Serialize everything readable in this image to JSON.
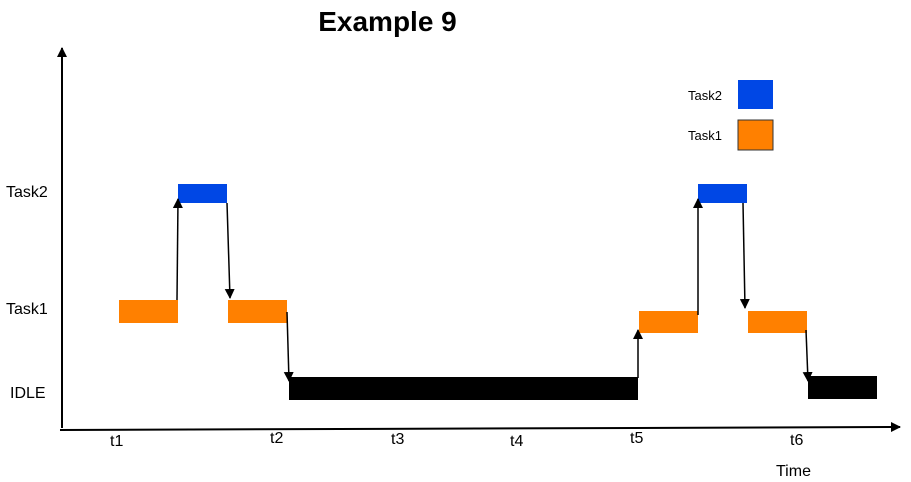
{
  "title": "Example 9",
  "colors": {
    "task2": "#0047E5",
    "task1": "#FF8000",
    "idle": "#000000"
  },
  "y_labels": {
    "task2": "Task2",
    "task1": "Task1",
    "idle": "IDLE"
  },
  "x_labels": [
    "t1",
    "t2",
    "t3",
    "t4",
    "t5",
    "t6"
  ],
  "axis_label": "Time",
  "legend": {
    "task2": "Task2",
    "task1": "Task1"
  }
}
